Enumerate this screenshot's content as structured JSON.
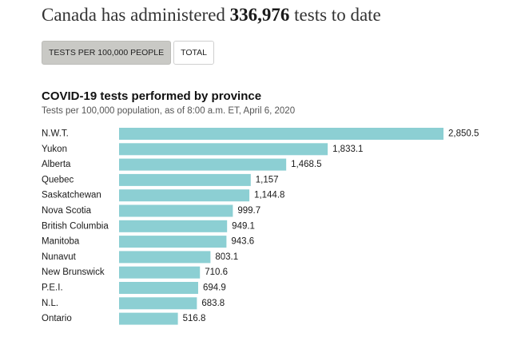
{
  "headline": {
    "prefix": "Canada has administered ",
    "number": "336,976",
    "suffix": " tests to date"
  },
  "toggle": {
    "options": [
      {
        "label": "TESTS PER 100,000 PEOPLE",
        "active": true
      },
      {
        "label": "TOTAL",
        "active": false
      }
    ]
  },
  "colors": {
    "bar": "#8ccfd3",
    "active_button": "#c9c9c5"
  },
  "chart_data": {
    "type": "bar",
    "orientation": "horizontal",
    "title": "COVID-19 tests performed by province",
    "subtitle": "Tests per 100,000 population, as of 8:00 a.m. ET, April 6, 2020",
    "categories": [
      "N.W.T.",
      "Yukon",
      "Alberta",
      "Quebec",
      "Saskatchewan",
      "Nova Scotia",
      "British Columbia",
      "Manitoba",
      "Nunavut",
      "New Brunswick",
      "P.E.I.",
      "N.L.",
      "Ontario"
    ],
    "values": [
      2850.5,
      1833.1,
      1468.5,
      1157,
      1144.8,
      999.7,
      949.1,
      943.6,
      803.1,
      710.6,
      694.9,
      683.8,
      516.8
    ],
    "value_labels": [
      "2,850.5",
      "1,833.1",
      "1,468.5",
      "1,157",
      "1,144.8",
      "999.7",
      "949.1",
      "943.6",
      "803.1",
      "710.6",
      "694.9",
      "683.8",
      "516.8"
    ],
    "xlim": [
      0,
      2850.5
    ],
    "grid": false,
    "legend": "none"
  }
}
